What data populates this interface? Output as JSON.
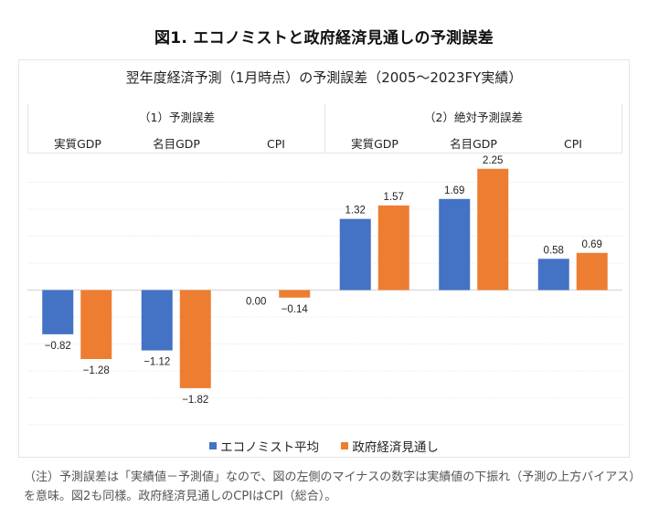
{
  "figure_title": "図1. エコノミストと政府経済見通しの予測誤差",
  "note": "（注）予測誤差は「実績値－予測値」なので、図の左側のマイナスの数字は実績値の下振れ（予測の上方バイアス）を意味。図2も同様。政府経済見通しのCPIはCPI（総合）。",
  "colors": {
    "economist": "#4472C4",
    "government": "#ED7D31",
    "grid": "#e3e3e3"
  },
  "chart_data": {
    "type": "bar",
    "title": "翌年度経済予測（1月時点）の予測誤差（2005～2023FY実績）",
    "xlabel": "",
    "ylabel": "",
    "ylim": [
      -2.5,
      2.5
    ],
    "grid_step": 0.5,
    "grid": true,
    "legend_position": "bottom",
    "panels": [
      {
        "title": "（1）予測誤差",
        "categories": [
          "実質GDP",
          "名目GDP",
          "CPI"
        ]
      },
      {
        "title": "（2）絶対予測誤差",
        "categories": [
          "実質GDP",
          "名目GDP",
          "CPI"
        ]
      }
    ],
    "categories": [
      "実質GDP",
      "名目GDP",
      "CPI",
      "実質GDP",
      "名目GDP",
      "CPI"
    ],
    "series": [
      {
        "name": "エコノミスト平均",
        "color": "#4472C4",
        "values": [
          -0.82,
          -1.12,
          0.0,
          1.32,
          1.69,
          0.58
        ],
        "labels": [
          "-0.82",
          "-1.12",
          "0.00",
          "1.32",
          "1.69",
          "0.58"
        ]
      },
      {
        "name": "政府経済見通し",
        "color": "#ED7D31",
        "values": [
          -1.28,
          -1.82,
          -0.14,
          1.57,
          2.25,
          0.69
        ],
        "labels": [
          "-1.28",
          "-1.82",
          "-0.14",
          "1.57",
          "2.25",
          "0.69"
        ]
      }
    ]
  }
}
